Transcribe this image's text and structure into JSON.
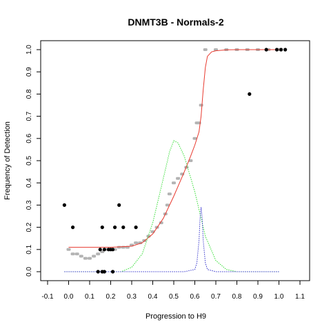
{
  "chart_data": {
    "type": "scatter",
    "title": "DNMT3B - Normals-2",
    "xlabel": "Progression to H9",
    "ylabel": "Frequency of Detection",
    "xlim": [
      -0.1,
      1.1
    ],
    "ylim": [
      0.0,
      1.0
    ],
    "x_ticks": [
      "-0.1",
      "0.0",
      "0.1",
      "0.2",
      "0.3",
      "0.4",
      "0.5",
      "0.6",
      "0.7",
      "0.8",
      "0.9",
      "1.0",
      "1.1"
    ],
    "y_ticks": [
      "0.0",
      "0.1",
      "0.2",
      "0.3",
      "0.4",
      "0.5",
      "0.6",
      "0.7",
      "0.8",
      "0.9",
      "1.0"
    ],
    "colors": {
      "samples": "#000000",
      "smoothed": "#b3b3b3",
      "fit": "#e8392e",
      "density_wide": "#33dd33",
      "density_narrow": "#3333cc",
      "frame": "#000000"
    },
    "series": [
      {
        "name": "samples",
        "style": "black-points",
        "x": [
          -0.02,
          0.02,
          0.16,
          0.24,
          0.22,
          0.26,
          0.32,
          0.15,
          0.17,
          0.19,
          0.2,
          0.21,
          0.14,
          0.16,
          0.17,
          0.21,
          0.86,
          0.94,
          0.99,
          1.01,
          1.03
        ],
        "y": [
          0.3,
          0.2,
          0.2,
          0.3,
          0.2,
          0.2,
          0.2,
          0.1,
          0.1,
          0.1,
          0.1,
          0.1,
          0.0,
          0.0,
          0.0,
          0.0,
          0.8,
          1.0,
          1.0,
          1.0,
          1.0
        ]
      },
      {
        "name": "smoothed-frequency",
        "style": "grey-points",
        "x": [
          0.0,
          0.02,
          0.04,
          0.06,
          0.08,
          0.1,
          0.12,
          0.14,
          0.16,
          0.18,
          0.2,
          0.22,
          0.24,
          0.26,
          0.28,
          0.3,
          0.32,
          0.34,
          0.36,
          0.38,
          0.4,
          0.42,
          0.44,
          0.46,
          0.47,
          0.48,
          0.5,
          0.52,
          0.54,
          0.56,
          0.58,
          0.6,
          0.61,
          0.62,
          0.63,
          0.65,
          0.7,
          0.75,
          0.8,
          0.85,
          0.9,
          0.95,
          1.0
        ],
        "y": [
          0.1,
          0.08,
          0.08,
          0.07,
          0.06,
          0.06,
          0.07,
          0.08,
          0.09,
          0.1,
          0.1,
          0.1,
          0.11,
          0.11,
          0.11,
          0.12,
          0.13,
          0.13,
          0.14,
          0.16,
          0.18,
          0.2,
          0.22,
          0.26,
          0.3,
          0.35,
          0.4,
          0.42,
          0.44,
          0.47,
          0.5,
          0.6,
          0.67,
          0.67,
          0.75,
          1.0,
          1.0,
          1.0,
          1.0,
          1.0,
          1.0,
          1.0,
          1.0
        ]
      },
      {
        "name": "fit",
        "style": "red-line",
        "x": [
          0.0,
          0.1,
          0.2,
          0.3,
          0.35,
          0.4,
          0.45,
          0.5,
          0.55,
          0.58,
          0.6,
          0.62,
          0.63,
          0.64,
          0.65,
          0.66,
          0.68,
          0.7,
          0.75,
          0.8,
          0.9,
          1.0
        ],
        "y": [
          0.11,
          0.11,
          0.11,
          0.115,
          0.13,
          0.17,
          0.24,
          0.34,
          0.45,
          0.52,
          0.57,
          0.63,
          0.7,
          0.82,
          0.92,
          0.97,
          0.99,
          0.995,
          0.999,
          1.0,
          1.0,
          1.0
        ]
      },
      {
        "name": "density-wide",
        "style": "green-dotted",
        "x": [
          -0.02,
          0.25,
          0.3,
          0.35,
          0.4,
          0.45,
          0.48,
          0.5,
          0.52,
          0.55,
          0.6,
          0.65,
          0.7,
          0.75,
          0.8,
          1.0
        ],
        "y": [
          0.0,
          0.0,
          0.02,
          0.08,
          0.22,
          0.42,
          0.54,
          0.59,
          0.58,
          0.52,
          0.36,
          0.16,
          0.05,
          0.01,
          0.0,
          0.0
        ]
      },
      {
        "name": "density-narrow",
        "style": "blue-dotted",
        "x": [
          -0.02,
          0.55,
          0.6,
          0.61,
          0.62,
          0.625,
          0.63,
          0.635,
          0.64,
          0.65,
          0.66,
          0.7,
          1.0
        ],
        "y": [
          0.0,
          0.0,
          0.01,
          0.04,
          0.14,
          0.24,
          0.29,
          0.24,
          0.14,
          0.04,
          0.01,
          0.0,
          0.0
        ]
      }
    ]
  }
}
